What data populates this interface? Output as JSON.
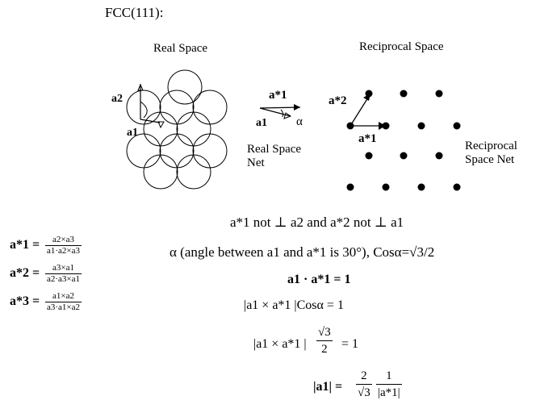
{
  "title": "FCC(111):",
  "real_space": {
    "label": "Real Space",
    "a2_label": "a2",
    "a1_label": "a1"
  },
  "net": {
    "astar1_label": "a*1",
    "a1_label": "a1",
    "alpha_label": "α",
    "caption_line1": "Real Space",
    "caption_line2": "Net"
  },
  "reciprocal_space": {
    "label": "Reciprocal Space",
    "astar2_label": "a*2",
    "astar1_label": "a*1",
    "side_line1": "Reciprocal",
    "side_line2": "Space Net"
  },
  "definitions": [
    {
      "lhs": "a*1 =",
      "num": "a2×a3",
      "den": "a1·a2×a3"
    },
    {
      "lhs": "a*2 =",
      "num": "a3×a1",
      "den": "a2·a3×a1"
    },
    {
      "lhs": "a*3 =",
      "num": "a1×a2",
      "den": "a3·a1×a2"
    }
  ],
  "statements": {
    "not_perp": "a*1 not ⊥ a2 and a*2 not ⊥ a1",
    "alpha": "α (angle between a1 and a*1 is 30°), Cosα=√3/2"
  },
  "equations": {
    "eq1": "a1 · a*1 = 1",
    "eq2": "|a1 × a*1 |Cosα = 1",
    "eq3_left": "|a1 × a*1 |",
    "eq3_num": "√3",
    "eq3_den": "2",
    "eq3_right": "= 1",
    "eq4_left": "|a1| =",
    "eq4_num1": "2",
    "eq4_den1": "√3",
    "eq4_num2": "1",
    "eq4_den2": "|a*1|"
  }
}
